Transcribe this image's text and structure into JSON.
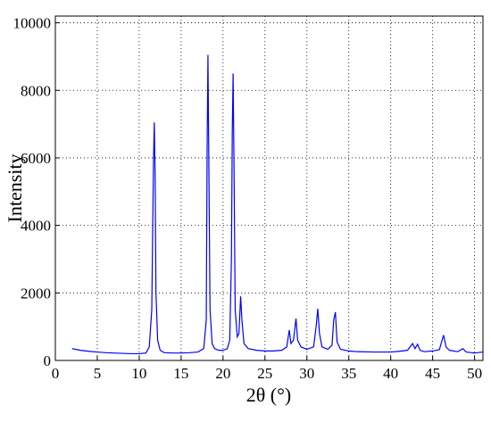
{
  "chart_data": {
    "type": "line",
    "x_label": "2θ (°)",
    "y_label": "Intensity",
    "x": [
      2,
      3,
      4,
      5,
      6,
      7,
      8,
      9,
      10,
      10.8,
      11.2,
      11.5,
      11.7,
      11.8,
      11.9,
      12.0,
      12.2,
      12.5,
      13,
      14,
      15,
      16,
      17,
      17.7,
      18.0,
      18.1,
      18.2,
      18.3,
      18.45,
      18.7,
      19,
      19.5,
      20,
      20.5,
      20.8,
      21.0,
      21.1,
      21.2,
      21.3,
      21.45,
      21.7,
      21.9,
      22.1,
      22.25,
      22.5,
      23,
      24,
      25,
      26,
      27,
      27.6,
      27.9,
      28.1,
      28.4,
      28.7,
      28.9,
      29.3,
      30,
      30.8,
      31.1,
      31.3,
      31.5,
      31.8,
      32.5,
      33.0,
      33.2,
      33.4,
      33.6,
      34,
      35,
      36,
      38,
      40,
      41,
      42,
      42.6,
      42.9,
      43.2,
      43.5,
      44,
      45,
      45.8,
      46.3,
      46.6,
      47,
      48,
      48.6,
      49,
      50,
      51
    ],
    "series": [
      {
        "color": "#0000ff",
        "values": [
          350,
          300,
          270,
          250,
          230,
          220,
          210,
          200,
          200,
          220,
          400,
          1500,
          5800,
          7050,
          5500,
          2000,
          600,
          300,
          230,
          220,
          220,
          230,
          250,
          350,
          1200,
          6200,
          9050,
          6000,
          1500,
          500,
          350,
          300,
          300,
          350,
          600,
          3000,
          6700,
          8500,
          6000,
          1500,
          700,
          800,
          1900,
          1200,
          500,
          350,
          300,
          280,
          280,
          300,
          400,
          900,
          500,
          600,
          1240,
          600,
          400,
          330,
          400,
          1000,
          1530,
          800,
          400,
          330,
          450,
          1200,
          1430,
          550,
          330,
          280,
          260,
          250,
          250,
          270,
          300,
          500,
          350,
          480,
          300,
          260,
          280,
          320,
          750,
          400,
          300,
          260,
          350,
          250,
          220,
          250
        ]
      }
    ],
    "xlim": [
      0,
      51
    ],
    "xticks": [
      0,
      5,
      10,
      15,
      20,
      25,
      30,
      35,
      40,
      45,
      50
    ],
    "ylim": [
      0,
      10200
    ],
    "yticks": [
      0,
      2000,
      4000,
      6000,
      8000,
      10000
    ],
    "grid": true
  }
}
